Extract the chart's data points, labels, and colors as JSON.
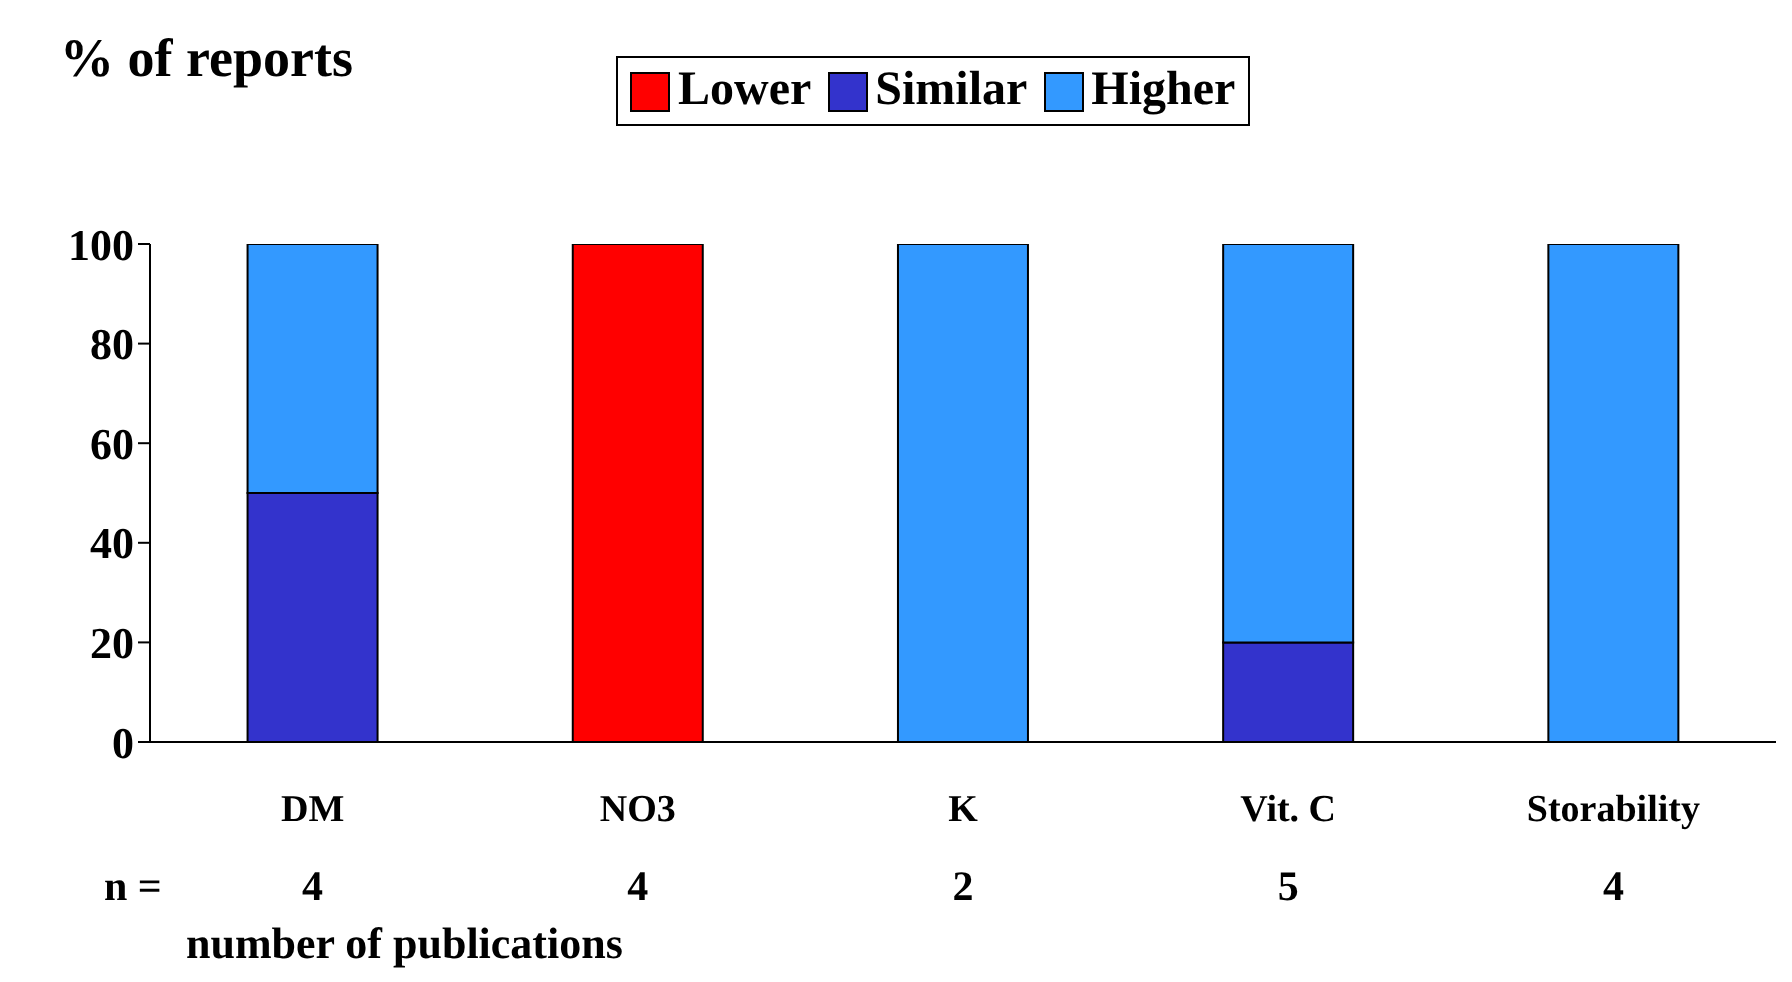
{
  "chart_data": {
    "type": "bar",
    "stacked": true,
    "ylabel": "% of reports",
    "xlabel": "number of publications",
    "categories": [
      "DM",
      "NO3",
      "K",
      "Vit. C",
      "Storability"
    ],
    "series": [
      {
        "name": "Lower",
        "color": "#ff0000",
        "values": [
          0,
          100,
          0,
          0,
          0
        ]
      },
      {
        "name": "Similar",
        "color": "#3333cc",
        "values": [
          50,
          0,
          0,
          20,
          0
        ]
      },
      {
        "name": "Higher",
        "color": "#3399ff",
        "values": [
          50,
          0,
          100,
          80,
          100
        ]
      }
    ],
    "ylim": [
      0,
      100
    ],
    "yticks": [
      0,
      20,
      40,
      60,
      80,
      100
    ],
    "legend": "top",
    "annotations": [
      "n =",
      "4",
      "4",
      "2",
      "5",
      "4"
    ]
  }
}
